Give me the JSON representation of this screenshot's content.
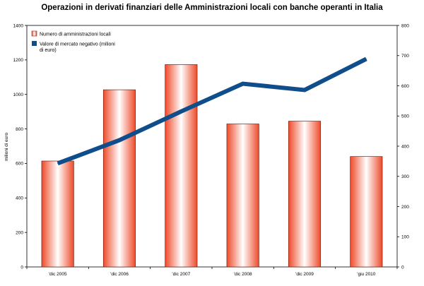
{
  "chart_data": {
    "type": "bar",
    "title": "Operazioni in derivati finanziari delle Amministrazioni locali con banche operanti in Italia",
    "ylabel": "milioni di euro",
    "y2label": "",
    "categories": [
      "'dic 2005",
      "'dic 2006",
      "'dic 2007",
      "'dic 2008",
      "'dic 2009",
      "'giu 2010"
    ],
    "ylim": [
      0,
      1400
    ],
    "y2lim": [
      0,
      800
    ],
    "yticks": [
      "0",
      "200",
      "400",
      "600",
      "800",
      "1000",
      "1200",
      "1400"
    ],
    "y2ticks": [
      "0",
      "100",
      "200",
      "300",
      "400",
      "500",
      "600",
      "700",
      "800"
    ],
    "grid": false,
    "legend_position": "top-left",
    "series": [
      {
        "name": "Numero di amministrazioni locali",
        "kind": "bar",
        "axis": "left",
        "color": "#f0674a",
        "values": [
          614,
          1027,
          1173,
          829,
          845,
          640
        ]
      },
      {
        "name": "Valore di mercato negativo (milioni di euro)",
        "kind": "line",
        "axis": "right",
        "color": "#0f4e8a",
        "values": [
          343,
          420,
          515,
          607,
          586,
          689
        ]
      }
    ]
  }
}
